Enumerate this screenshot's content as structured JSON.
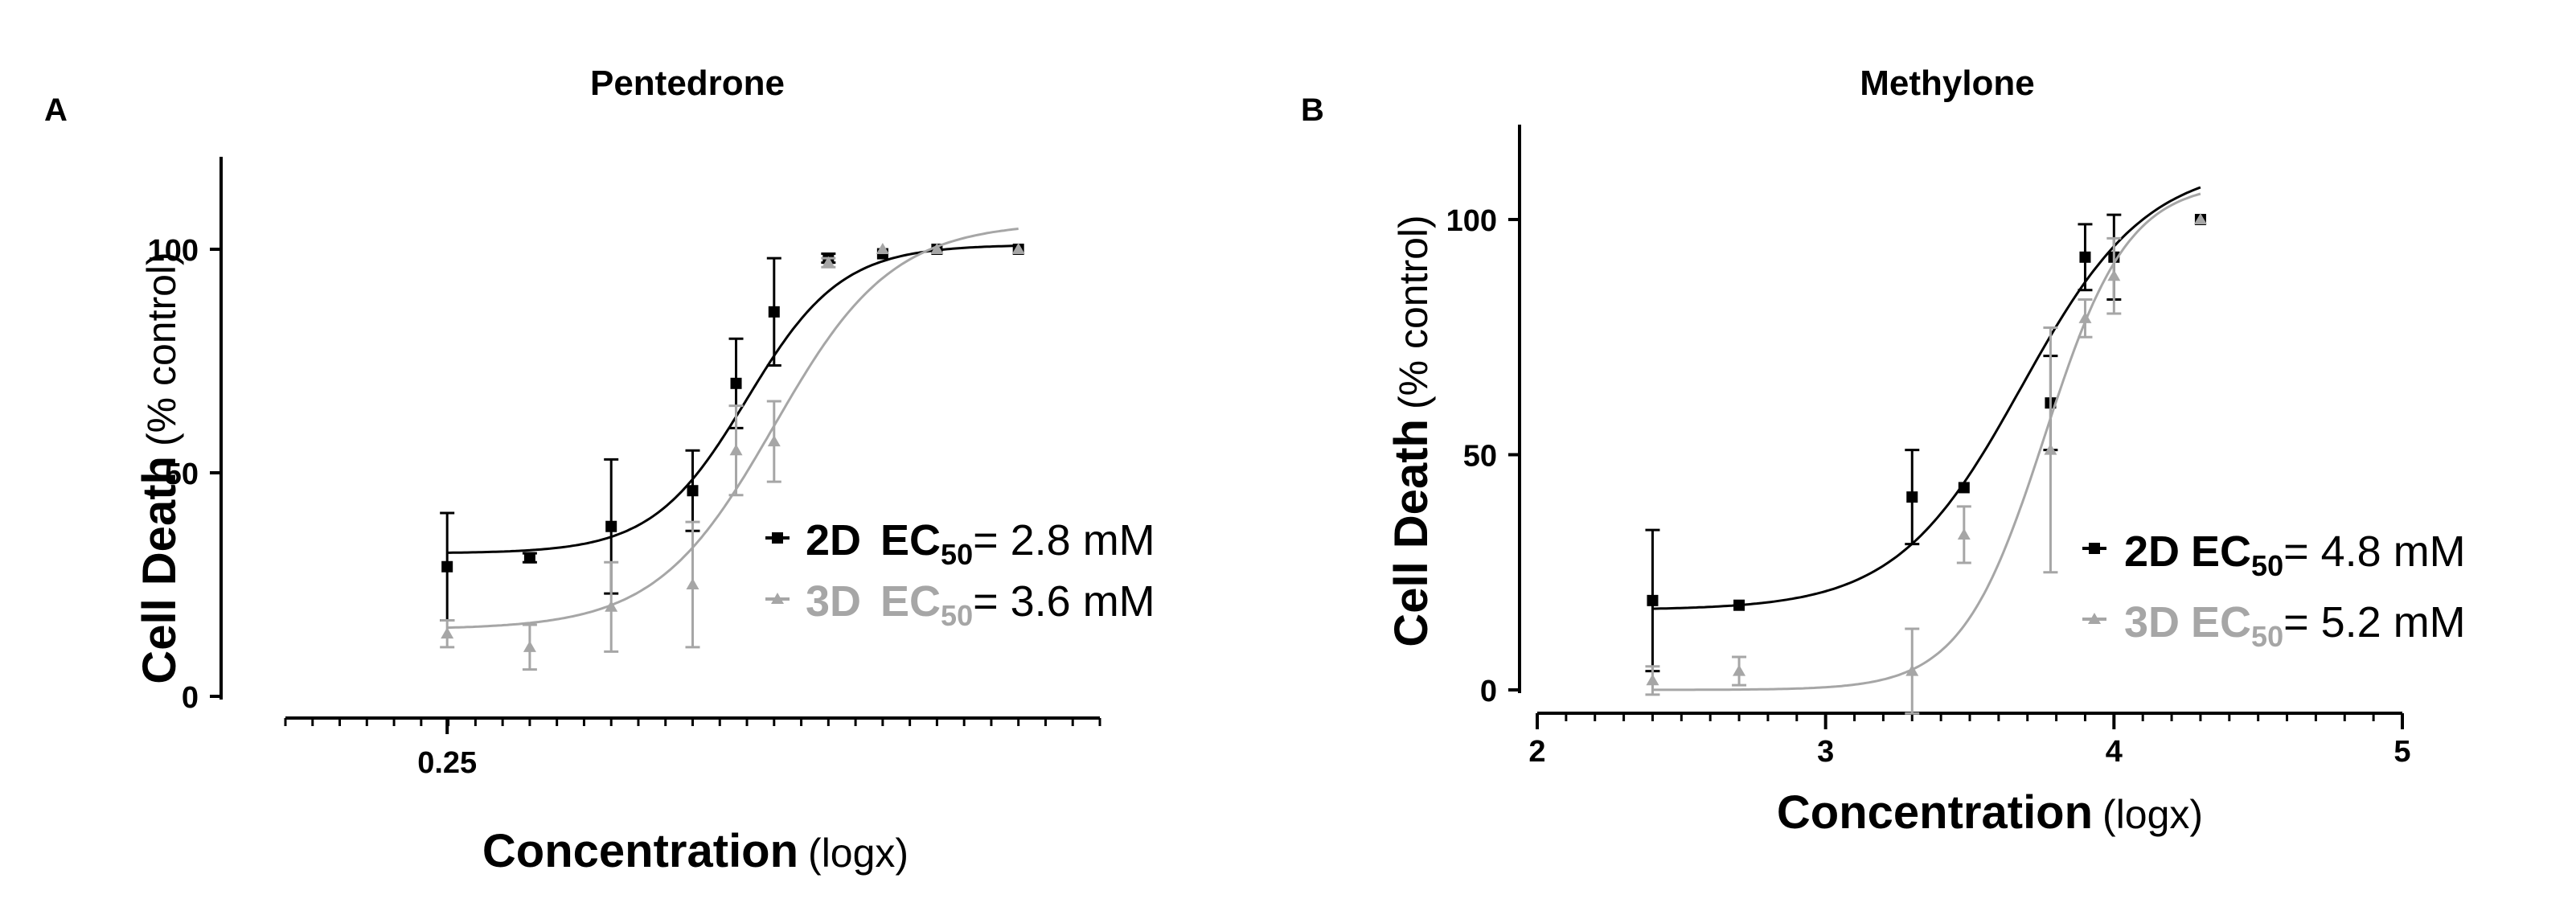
{
  "chart_data": [
    {
      "panel_label": "A",
      "type": "scatter",
      "title": "Pentedrone",
      "ylabel_bold": "Cell Death",
      "ylabel_normal": "(% control)",
      "xlabel_bold": "Concentration",
      "xlabel_normal": "(logx)",
      "y_range": [
        0,
        120
      ],
      "y_ticks": [
        0,
        50,
        100
      ],
      "x_range": [
        -0.9,
        0.6
      ],
      "x_tick_labels": [
        {
          "value": -0.6021,
          "label": "0.25"
        }
      ],
      "legend_placement": "center-right",
      "series": [
        {
          "key": "2D",
          "legend_label": "2D",
          "ec_label": "EC",
          "ec_sub": "50",
          "ec_value": "= 2.8 mM",
          "color": "#000000",
          "fit": {
            "bottom": 32,
            "top": 101,
            "logEC50": -0.05,
            "hill": 5.0
          },
          "x": [
            -0.6021,
            -0.45,
            -0.3,
            -0.15,
            -0.07,
            0.0,
            0.1,
            0.2,
            0.3,
            0.45
          ],
          "y": [
            29,
            31,
            38,
            46,
            70,
            86,
            98,
            99,
            100,
            100
          ],
          "err": [
            12,
            1,
            15,
            9,
            10,
            12,
            1,
            0,
            0,
            0
          ]
        },
        {
          "key": "3D",
          "legend_label": "3D",
          "ec_label": "EC",
          "ec_sub": "50",
          "ec_value": "= 3.6 mM",
          "color": "#a6a6a6",
          "fit": {
            "bottom": 15,
            "top": 106,
            "logEC50": 0.0,
            "hill": 4.0
          },
          "x": [
            -0.6021,
            -0.45,
            -0.3,
            -0.15,
            -0.07,
            0.0,
            0.1,
            0.2,
            0.3,
            0.45
          ],
          "y": [
            14,
            11,
            20,
            25,
            55,
            57,
            97,
            100,
            100,
            100
          ],
          "err": [
            3,
            5,
            10,
            14,
            10,
            9,
            1,
            0,
            0,
            0
          ]
        }
      ]
    },
    {
      "panel_label": "B",
      "type": "scatter",
      "title": "Methylone",
      "ylabel_bold": "Cell Death",
      "ylabel_normal": "(% control)",
      "xlabel_bold": "Concentration",
      "xlabel_normal": "(logx)",
      "y_range": [
        0,
        120
      ],
      "y_ticks": [
        0,
        50,
        100
      ],
      "x_range": [
        2,
        5
      ],
      "x_ticks": [
        2,
        3,
        4,
        5
      ],
      "legend_placement": "center-right",
      "series": [
        {
          "key": "2D",
          "legend_label": "2D",
          "ec_label": "EC",
          "ec_sub": "50",
          "ec_value": "= 4.8 mM",
          "color": "#000000",
          "fit": {
            "bottom": 17,
            "top": 112,
            "logEC50": 3.68,
            "hill": 2.0
          },
          "x": [
            2.4,
            2.7,
            3.3,
            3.48,
            3.78,
            3.9,
            4.0,
            4.3
          ],
          "y": [
            19,
            18,
            41,
            43,
            61,
            92,
            92,
            100
          ],
          "err": [
            15,
            0,
            10,
            0,
            10,
            7,
            9,
            0
          ]
        },
        {
          "key": "3D",
          "legend_label": "3D",
          "ec_label": "EC",
          "ec_sub": "50",
          "ec_value": "= 5.2 mM",
          "color": "#a6a6a6",
          "fit": {
            "bottom": 0,
            "top": 108,
            "logEC50": 3.76,
            "hill": 3.0
          },
          "x": [
            2.4,
            2.7,
            3.3,
            3.48,
            3.78,
            3.9,
            4.0,
            4.3
          ],
          "y": [
            2,
            4,
            4,
            33,
            51,
            79,
            88,
            100
          ],
          "err": [
            3,
            3,
            9,
            6,
            26,
            4,
            8,
            0
          ]
        }
      ]
    }
  ]
}
